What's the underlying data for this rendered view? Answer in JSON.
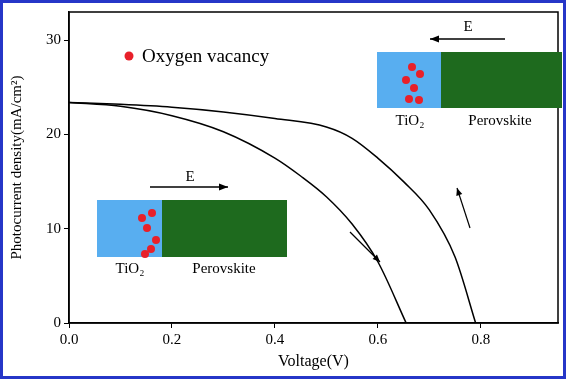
{
  "chart_data": {
    "type": "line",
    "x_label": "Voltage(V)",
    "y_label": "Photocurrent density(mA/cm²)",
    "xlim": [
      0,
      0.95
    ],
    "ylim": [
      0,
      33
    ],
    "xticks": [
      {
        "value": 0,
        "label": "0.0"
      },
      0.2,
      0.4,
      0.6,
      0.8
    ],
    "yticks": [
      0,
      10,
      20,
      30
    ],
    "grid": false,
    "series": [
      {
        "color": "#000000",
        "line_style": "solid",
        "x": [
          0,
          0.1,
          0.2,
          0.3,
          0.4,
          0.5,
          0.55,
          0.6,
          0.65,
          0.7,
          0.75,
          0.79
        ],
        "values": [
          23.4,
          23.2,
          22.9,
          22.4,
          21.7,
          20.8,
          19.6,
          17.5,
          15.0,
          12.0,
          7.0,
          0
        ]
      },
      {
        "color": "#000000",
        "line_style": "solid",
        "x": [
          0,
          0.1,
          0.2,
          0.3,
          0.4,
          0.45,
          0.5,
          0.55,
          0.6,
          0.655
        ],
        "values": [
          23.4,
          23.0,
          22.0,
          20.3,
          17.5,
          15.6,
          13.4,
          10.5,
          6.5,
          0
        ]
      }
    ],
    "annotations": {
      "legend_marker": {
        "text": "Oxygen vacancy",
        "color": "#e8202a"
      },
      "insets": [
        {
          "field_label": "E",
          "field_direction": "right",
          "vacancy_color": "#e8202a",
          "layers": [
            {
              "text": "TiO₂",
              "color": "#58aef0"
            },
            {
              "text": "Perovskite",
              "color": "#1e6a1e"
            }
          ]
        },
        {
          "field_label": "E",
          "field_direction": "left",
          "vacancy_color": "#e8202a",
          "layers": [
            {
              "text": "TiO₂",
              "color": "#58aef0"
            },
            {
              "text": "Perovskite",
              "color": "#1e6a1e"
            }
          ]
        }
      ]
    }
  }
}
